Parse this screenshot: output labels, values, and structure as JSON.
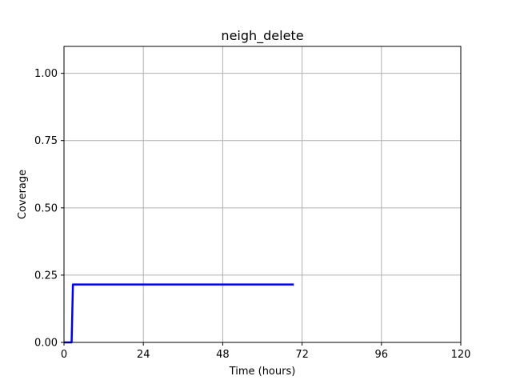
{
  "chart_data": {
    "type": "line",
    "title": "neigh_delete",
    "xlabel": "Time (hours)",
    "ylabel": "Coverage",
    "xlim": [
      0,
      120
    ],
    "ylim": [
      0,
      1.1
    ],
    "xticks": [
      0,
      24,
      48,
      72,
      96,
      120
    ],
    "xtick_labels": [
      "0",
      "24",
      "48",
      "72",
      "96",
      "120"
    ],
    "yticks": [
      0,
      0.25,
      0.5,
      0.75,
      1.0
    ],
    "ytick_labels": [
      "0.00",
      "0.25",
      "0.50",
      "0.75",
      "1.00"
    ],
    "grid": true,
    "series": [
      {
        "color": "#0000ff",
        "x": [
          0,
          2.3,
          2.7,
          69.5
        ],
        "y": [
          0,
          0,
          0.215,
          0.215
        ]
      }
    ]
  }
}
